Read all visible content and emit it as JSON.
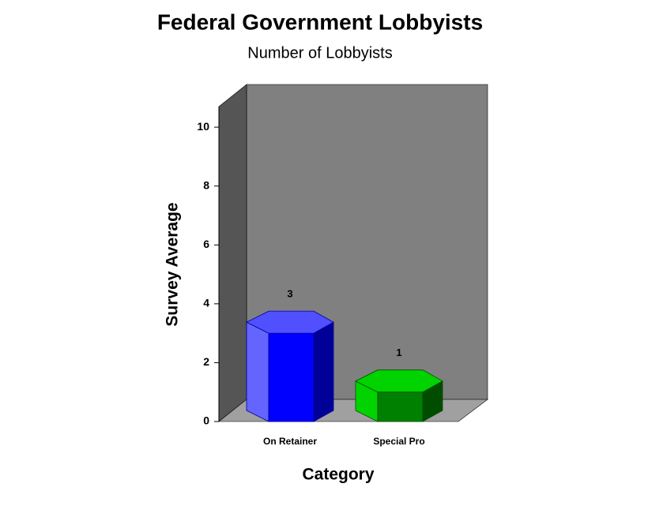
{
  "chart_data": {
    "type": "bar3d",
    "title": "Federal Government Lobbyists",
    "subtitle": "Number of Lobbyists",
    "x_label": "Category",
    "y_label": "Survey Average",
    "categories": [
      "On Retainer",
      "Special Pro"
    ],
    "values": [
      3,
      1
    ],
    "colors": [
      "#0000ff",
      "#008000"
    ],
    "ylim": [
      0,
      10.7
    ],
    "yticks": [
      0,
      2,
      4,
      6,
      8,
      10
    ]
  }
}
